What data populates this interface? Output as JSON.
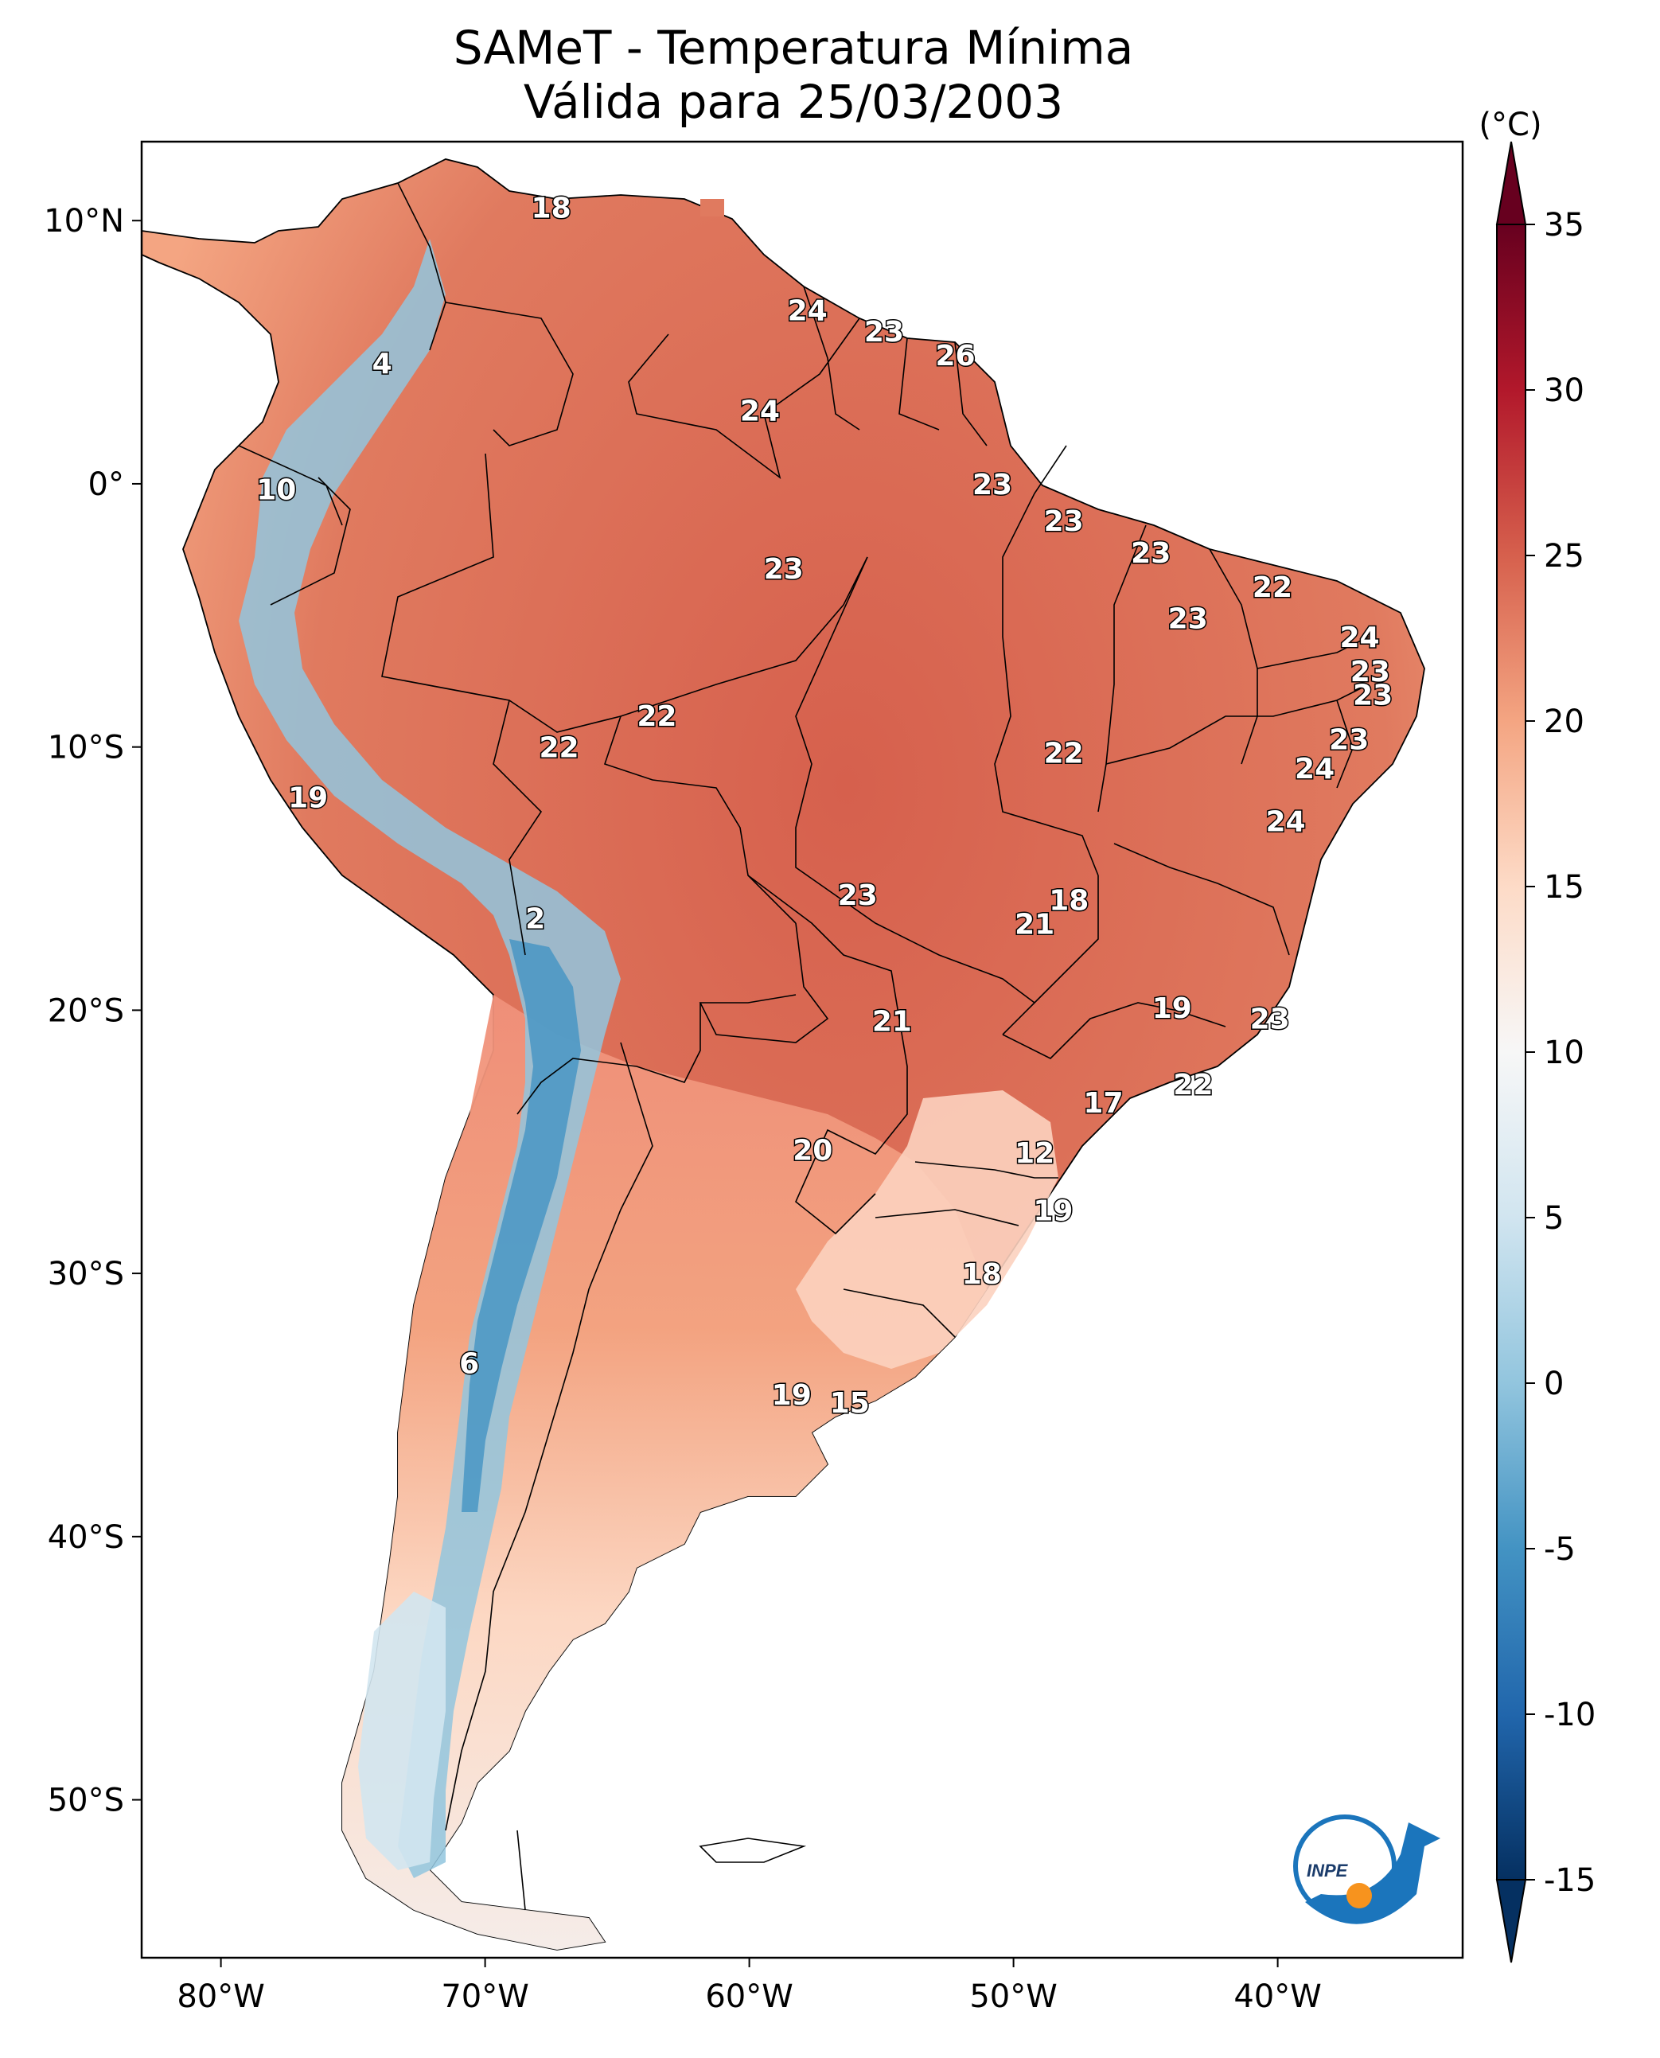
{
  "title_line1": "SAMeT - Temperatura Mínima",
  "title_line2": "Válida para 25/03/2003",
  "colorbar": {
    "unit": "(°C)",
    "min": -15,
    "max": 35,
    "ticks": [
      "35",
      "30",
      "25",
      "20",
      "15",
      "10",
      "5",
      "0",
      "-5",
      "-10",
      "-15"
    ],
    "colors": [
      "#053061",
      "#2166ac",
      "#4393c3",
      "#92c5de",
      "#d1e5f0",
      "#f7f7f7",
      "#fddbc7",
      "#f4a582",
      "#d6604d",
      "#b2182b",
      "#67001f"
    ]
  },
  "axes": {
    "lon_ticks": [
      "80°W",
      "70°W",
      "60°W",
      "50°W",
      "40°W"
    ],
    "lat_ticks": [
      "10°N",
      "0°",
      "10°S",
      "20°S",
      "30°S",
      "40°S",
      "50°S"
    ]
  },
  "logo_text": "INPE",
  "station_labels": [
    {
      "v": "18",
      "lon": -67.5,
      "lat": 10.5
    },
    {
      "v": "24",
      "lon": -57.8,
      "lat": 6.6
    },
    {
      "v": "23",
      "lon": -54.9,
      "lat": 5.8
    },
    {
      "v": "26",
      "lon": -52.2,
      "lat": 4.9
    },
    {
      "v": "4",
      "lon": -73.9,
      "lat": 4.6
    },
    {
      "v": "24",
      "lon": -59.6,
      "lat": 2.8
    },
    {
      "v": "10",
      "lon": -77.9,
      "lat": -0.2
    },
    {
      "v": "23",
      "lon": -50.8,
      "lat": 0.0
    },
    {
      "v": "23",
      "lon": -48.1,
      "lat": -1.4
    },
    {
      "v": "23",
      "lon": -44.8,
      "lat": -2.6
    },
    {
      "v": "23",
      "lon": -58.7,
      "lat": -3.2
    },
    {
      "v": "22",
      "lon": -40.2,
      "lat": -3.9
    },
    {
      "v": "23",
      "lon": -43.4,
      "lat": -5.1
    },
    {
      "v": "24",
      "lon": -36.9,
      "lat": -5.8
    },
    {
      "v": "23",
      "lon": -36.5,
      "lat": -7.1
    },
    {
      "v": "23",
      "lon": -36.4,
      "lat": -8.0
    },
    {
      "v": "22",
      "lon": -63.5,
      "lat": -8.8
    },
    {
      "v": "22",
      "lon": -48.1,
      "lat": -10.2
    },
    {
      "v": "22",
      "lon": -67.2,
      "lat": -10.0
    },
    {
      "v": "23",
      "lon": -37.3,
      "lat": -9.7
    },
    {
      "v": "24",
      "lon": -38.6,
      "lat": -10.8
    },
    {
      "v": "19",
      "lon": -76.7,
      "lat": -11.9
    },
    {
      "v": "24",
      "lon": -39.7,
      "lat": -12.8
    },
    {
      "v": "23",
      "lon": -55.9,
      "lat": -15.6
    },
    {
      "v": "18",
      "lon": -47.9,
      "lat": -15.8
    },
    {
      "v": "2",
      "lon": -68.1,
      "lat": -16.5
    },
    {
      "v": "21",
      "lon": -49.2,
      "lat": -16.7
    },
    {
      "v": "19",
      "lon": -44.0,
      "lat": -19.9
    },
    {
      "v": "23",
      "lon": -40.3,
      "lat": -20.3
    },
    {
      "v": "21",
      "lon": -54.6,
      "lat": -20.4
    },
    {
      "v": "22",
      "lon": -43.2,
      "lat": -22.8
    },
    {
      "v": "17",
      "lon": -46.6,
      "lat": -23.5
    },
    {
      "v": "20",
      "lon": -57.6,
      "lat": -25.3
    },
    {
      "v": "12",
      "lon": -49.2,
      "lat": -25.4
    },
    {
      "v": "19",
      "lon": -48.5,
      "lat": -27.6
    },
    {
      "v": "18",
      "lon": -51.2,
      "lat": -30.0
    },
    {
      "v": "6",
      "lon": -70.6,
      "lat": -33.4
    },
    {
      "v": "19",
      "lon": -58.4,
      "lat": -34.6
    },
    {
      "v": "15",
      "lon": -56.2,
      "lat": -34.9
    }
  ]
}
